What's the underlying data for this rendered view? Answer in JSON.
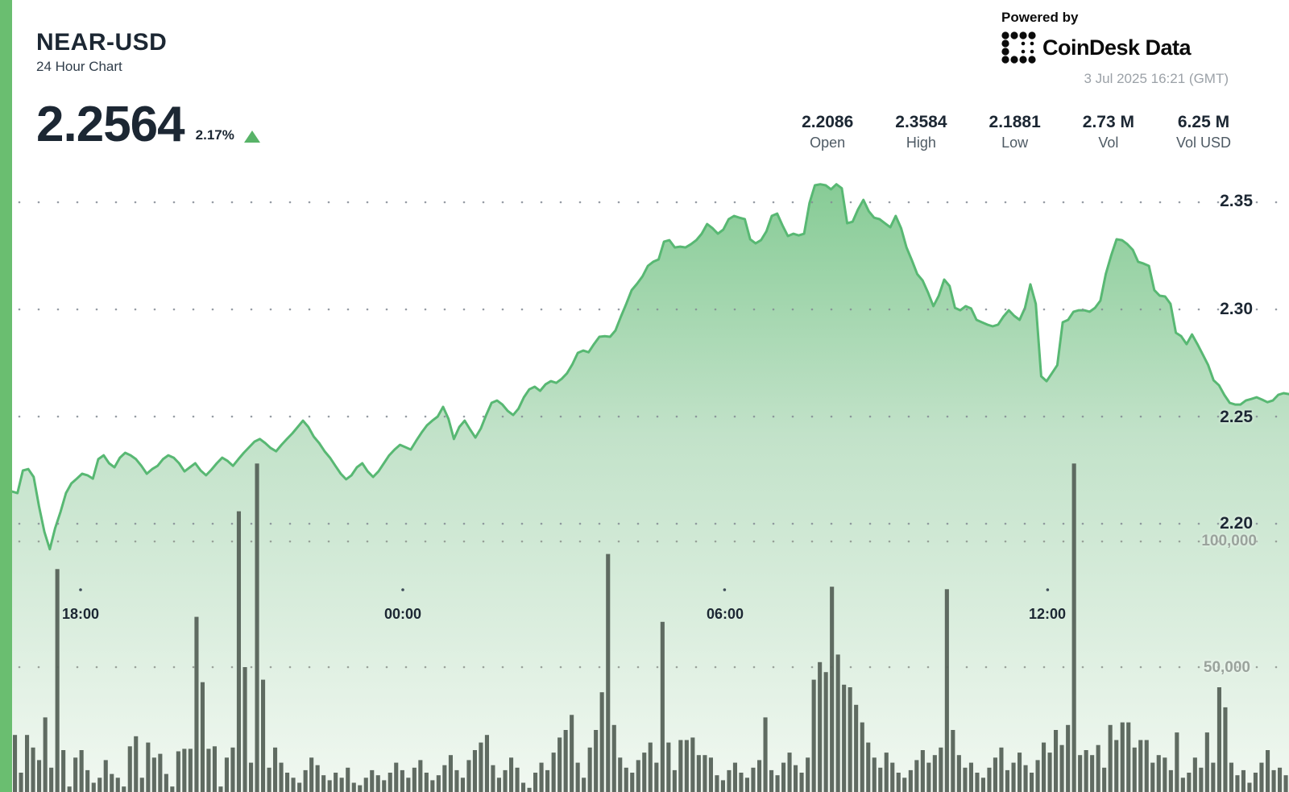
{
  "header": {
    "symbol": "NEAR-USD",
    "subtitle": "24 Hour Chart",
    "price": "2.2564",
    "change_percent": "2.17%",
    "direction": "up"
  },
  "branding": {
    "powered_by": "Powered by",
    "brand": "CoinDesk Data",
    "timestamp": "3 Jul 2025 16:21 (GMT)"
  },
  "stats": [
    {
      "value": "2.2086",
      "label": "Open"
    },
    {
      "value": "2.3584",
      "label": "High"
    },
    {
      "value": "2.1881",
      "label": "Low"
    },
    {
      "value": "2.73 M",
      "label": "Vol"
    },
    {
      "value": "6.25 M",
      "label": "Vol USD"
    }
  ],
  "colors": {
    "accent_green": "#6abe70",
    "line_green": "#58b873",
    "fill_green_top": "#85cb94",
    "fill_green_bottom": "#f1f8f1",
    "volume_bar": "#57635a",
    "text_dark": "#1c2733",
    "text_gray": "#4e5a64",
    "axis_gray": "#9aa39c",
    "timestamp_gray": "#9ba1a7",
    "triangle_green": "#58b368"
  },
  "icons": {
    "brand_mark": "coindesk-dots",
    "change_direction": "up-triangle"
  },
  "chart_data": {
    "type": "area",
    "title": "NEAR-USD 24 Hour Chart",
    "grid": "dotted",
    "legend": "none",
    "summary": {
      "open": 2.2086,
      "high": 2.3584,
      "low": 2.1881,
      "last": 2.2564,
      "change_pct": 2.17,
      "volume": 2730000,
      "volume_usd": 6250000
    },
    "x_axis": {
      "tick_labels": [
        "18:00",
        "00:00",
        "06:00",
        "12:00"
      ],
      "span": "24 hours ending 3 Jul 2025 16:21 GMT"
    },
    "price_axis": {
      "tick_labels": [
        "2.35",
        "2.30",
        "2.25",
        "2.20"
      ],
      "ticks": [
        2.35,
        2.3,
        2.25,
        2.2
      ],
      "ylim": [
        2.18,
        2.37
      ],
      "position": "right"
    },
    "volume_axis": {
      "tick_labels": [
        "100,000",
        "50,000"
      ],
      "ticks": [
        100000,
        50000
      ],
      "ylim": [
        0,
        135000
      ],
      "position": "right"
    },
    "series": [
      {
        "name": "price",
        "type": "line-area",
        "color": "#58b873",
        "values": [
          2.215,
          2.2143,
          2.2248,
          2.2255,
          2.2218,
          2.2082,
          2.1962,
          2.1881,
          2.198,
          2.2056,
          2.2143,
          2.2188,
          2.221,
          2.2233,
          2.2226,
          2.221,
          2.2301,
          2.2319,
          2.2282,
          2.2263,
          2.2308,
          2.2331,
          2.2319,
          2.2301,
          2.227,
          2.2233,
          2.2255,
          2.227,
          2.2301,
          2.2319,
          2.2308,
          2.2282,
          2.2244,
          2.2263,
          2.2282,
          2.2248,
          2.2226,
          2.2252,
          2.2282,
          2.2308,
          2.2293,
          2.227,
          2.2301,
          2.2331,
          2.2357,
          2.2383,
          2.2395,
          2.2376,
          2.2353,
          2.2338,
          2.2368,
          2.2395,
          2.2421,
          2.2451,
          2.2481,
          2.2451,
          2.2406,
          2.2376,
          2.2338,
          2.2308,
          2.227,
          2.2233,
          2.2207,
          2.2226,
          2.2263,
          2.2282,
          2.2244,
          2.2218,
          2.2244,
          2.2282,
          2.2319,
          2.2346,
          2.2368,
          2.2357,
          2.2346,
          2.2387,
          2.2425,
          2.2459,
          2.2481,
          2.25,
          2.2545,
          2.2489,
          2.2395,
          2.2451,
          2.2481,
          2.244,
          2.2402,
          2.2444,
          2.2507,
          2.2564,
          2.2575,
          2.2556,
          2.2526,
          2.2507,
          2.2537,
          2.259,
          2.2627,
          2.2639,
          2.262,
          2.265,
          2.2665,
          2.2657,
          2.2676,
          2.2702,
          2.2744,
          2.2797,
          2.2808,
          2.28,
          2.2838,
          2.2872,
          2.2875,
          2.2872,
          2.2902,
          2.2966,
          2.3026,
          2.309,
          2.312,
          2.3154,
          2.3203,
          2.3222,
          2.3233,
          2.3316,
          2.3323,
          2.3289,
          2.3293,
          2.3289,
          2.3304,
          2.3323,
          2.3353,
          2.3398,
          2.3379,
          2.3353,
          2.3372,
          2.3421,
          2.3436,
          2.3428,
          2.3421,
          2.3327,
          2.3308,
          2.3323,
          2.3364,
          2.3436,
          2.3447,
          2.3391,
          2.3342,
          2.3353,
          2.3345,
          2.3353,
          2.3496,
          2.3579,
          2.3584,
          2.3579,
          2.356,
          2.3584,
          2.3565,
          2.3402,
          2.3409,
          2.3466,
          2.3511,
          2.3458,
          2.3428,
          2.3421,
          2.3402,
          2.3383,
          2.3436,
          2.3379,
          2.3289,
          2.3229,
          2.3165,
          2.3135,
          2.3079,
          2.3015,
          2.3064,
          2.3139,
          2.3109,
          2.3007,
          2.2996,
          2.3015,
          2.3004,
          2.2951,
          2.294,
          2.2929,
          2.2921,
          2.2929,
          2.2966,
          2.2996,
          2.297,
          2.2951,
          2.3007,
          2.3117,
          2.3026,
          2.2688,
          2.2665,
          2.2702,
          2.274,
          2.294,
          2.2951,
          2.2989,
          2.2996,
          2.2996,
          2.2989,
          2.3007,
          2.3041,
          2.3165,
          2.3252,
          2.3327,
          2.3323,
          2.3304,
          2.3278,
          2.3222,
          2.3214,
          2.3203,
          2.309,
          2.3064,
          2.306,
          2.3026,
          2.2891,
          2.2875,
          2.2838,
          2.2883,
          2.2838,
          2.2789,
          2.274,
          2.2669,
          2.2646,
          2.2601,
          2.2564,
          2.2556,
          2.2556,
          2.2575,
          2.2582,
          2.259,
          2.2579,
          2.2567,
          2.2575,
          2.2601,
          2.2609,
          2.2605
        ]
      },
      {
        "name": "volume",
        "type": "bar",
        "color": "#57635a",
        "values": [
          23000,
          8000,
          23000,
          18000,
          13000,
          30000,
          10000,
          89000,
          17000,
          2500,
          14000,
          17000,
          9000,
          4000,
          6000,
          13000,
          7500,
          6000,
          2500,
          18500,
          22500,
          6000,
          20000,
          14000,
          15500,
          7500,
          2500,
          16500,
          17500,
          17500,
          70000,
          44000,
          17500,
          18500,
          2500,
          14000,
          18000,
          112000,
          50000,
          12000,
          131000,
          45000,
          10000,
          18000,
          12000,
          8000,
          6000,
          4000,
          9000,
          14000,
          11000,
          7000,
          5000,
          8000,
          6000,
          10000,
          4000,
          3000,
          6000,
          9000,
          7000,
          5000,
          8000,
          12000,
          9000,
          6000,
          10000,
          13000,
          8000,
          5000,
          7000,
          11000,
          15000,
          9000,
          6000,
          13000,
          17000,
          20000,
          23000,
          11000,
          6000,
          9000,
          14000,
          10000,
          4000,
          2000,
          8000,
          12000,
          9000,
          16000,
          22000,
          25000,
          31000,
          12000,
          6000,
          18000,
          25000,
          40000,
          95000,
          27000,
          14000,
          10000,
          8000,
          13000,
          16000,
          20000,
          12000,
          68000,
          20000,
          9000,
          21000,
          21000,
          22000,
          15000,
          15000,
          14000,
          7000,
          5000,
          9000,
          12000,
          8000,
          6000,
          10000,
          13000,
          30000,
          9000,
          7000,
          12000,
          16000,
          11000,
          8000,
          14000,
          45000,
          52000,
          48000,
          82000,
          55000,
          43000,
          42000,
          35000,
          28000,
          20000,
          14000,
          10000,
          16000,
          12000,
          8000,
          6000,
          9000,
          13000,
          17000,
          12000,
          15000,
          18000,
          81000,
          25000,
          15000,
          10000,
          12000,
          8000,
          6000,
          10000,
          14000,
          18000,
          9000,
          12000,
          16000,
          11000,
          8000,
          13000,
          20000,
          16000,
          25000,
          19000,
          27000,
          131000,
          15000,
          17000,
          15000,
          19000,
          10000,
          27000,
          21000,
          28000,
          28000,
          18000,
          21000,
          21000,
          12000,
          15000,
          14000,
          9000,
          24000,
          6000,
          8000,
          14000,
          10000,
          24000,
          12000,
          42000,
          34000,
          12000,
          7000,
          9000,
          4000,
          8000,
          12000,
          17000,
          9000,
          10000,
          7000
        ]
      }
    ]
  }
}
